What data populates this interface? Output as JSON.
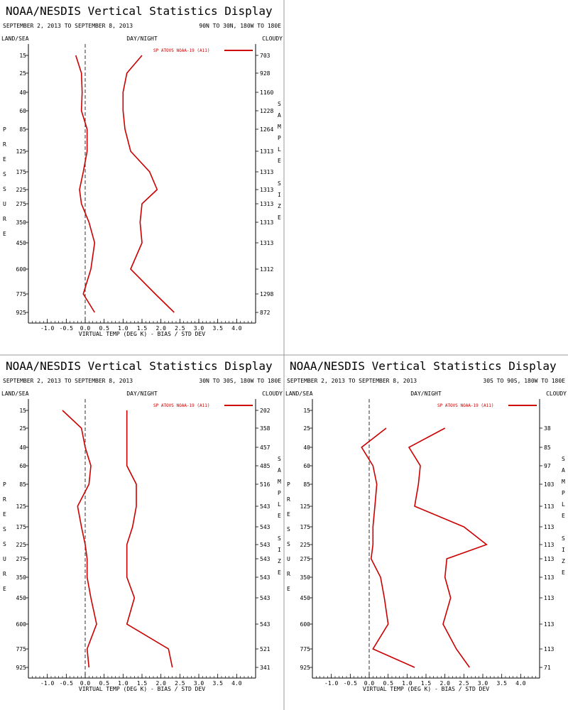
{
  "app": {
    "title": "NOAA/NESDIS Vertical Statistics Display"
  },
  "colors": {
    "series": "#cc0000",
    "zero_line": "#000000",
    "text": "#000000"
  },
  "panels": [
    {
      "title": "NOAA/NESDIS Vertical Statistics Display",
      "date_range": "SEPTEMBER 2, 2013 TO SEPTEMBER 8, 2013",
      "region": "90N TO 30N, 180W TO 180E",
      "left_label": "LAND/SEA",
      "mid_label": "DAY/NIGHT",
      "right_label": "CLOUDY",
      "y_axis_title": [
        "P",
        "R",
        "E",
        "S",
        "S",
        "U",
        "R",
        "E"
      ],
      "right_axis_title": [
        "S",
        "A",
        "M",
        "P",
        "L",
        "E",
        "",
        "S",
        "I",
        "Z",
        "E"
      ],
      "x_label": "VIRTUAL TEMP (DEG K) - BIAS / STD DEV",
      "legend": "SP ATOVS NOAA-19 (A11)",
      "sample_size": [
        "703",
        "928",
        "1160",
        "1228",
        "1264",
        "1313",
        "1313",
        "1313",
        "1313",
        "1313",
        "1313",
        "1312",
        "1298",
        "872"
      ]
    },
    {
      "title": "NOAA/NESDIS Vertical Statistics Display",
      "date_range": "SEPTEMBER 2, 2013 TO SEPTEMBER 8, 2013",
      "region": "30N TO 30S, 180W TO 180E",
      "left_label": "LAND/SEA",
      "mid_label": "DAY/NIGHT",
      "right_label": "CLOUDY",
      "y_axis_title": [
        "P",
        "R",
        "E",
        "S",
        "S",
        "U",
        "R",
        "E"
      ],
      "right_axis_title": [
        "S",
        "A",
        "M",
        "P",
        "L",
        "E",
        "",
        "S",
        "I",
        "Z",
        "E"
      ],
      "x_label": "VIRTUAL TEMP (DEG K) - BIAS / STD DEV",
      "legend": "SP ATOVS NOAA-19 (A11)",
      "sample_size": [
        "202",
        "358",
        "457",
        "485",
        "516",
        "543",
        "543",
        "543",
        "543",
        "543",
        "543",
        "543",
        "521",
        "341"
      ]
    },
    {
      "title": "NOAA/NESDIS Vertical Statistics Display",
      "date_range": "SEPTEMBER 2, 2013 TO SEPTEMBER 8, 2013",
      "region": "30S TO 90S, 180W TO 180E",
      "left_label": "LAND/SEA",
      "mid_label": "DAY/NIGHT",
      "right_label": "CLOUDY",
      "y_axis_title": [
        "P",
        "R",
        "E",
        "S",
        "S",
        "U",
        "R",
        "E"
      ],
      "right_axis_title": [
        "S",
        "A",
        "M",
        "P",
        "L",
        "E",
        "",
        "S",
        "I",
        "Z",
        "E"
      ],
      "x_label": "VIRTUAL TEMP (DEG K) - BIAS / STD DEV",
      "legend": "SP ATOVS NOAA-19 (A11)",
      "sample_size": [
        "",
        "38",
        "85",
        "97",
        "103",
        "113",
        "113",
        "113",
        "113",
        "113",
        "113",
        "113",
        "113",
        "71"
      ]
    }
  ],
  "chart_data": [
    {
      "type": "line",
      "region": "90N TO 30N, 180W TO 180E",
      "xlabel": "VIRTUAL TEMP (DEG K) - BIAS / STD DEV",
      "xlim": [
        -1.5,
        4.5
      ],
      "xticks": [
        "-1.0",
        "-0.5",
        "0.0",
        "0.5",
        "1.0",
        "1.5",
        "2.0",
        "2.5",
        "3.0",
        "3.5",
        "4.0"
      ],
      "y_pressure_levels": [
        "15",
        "25",
        "40",
        "60",
        "85",
        "125",
        "175",
        "225",
        "275",
        "350",
        "450",
        "600",
        "775",
        "925"
      ],
      "series": [
        {
          "name": "SP ATOVS NOAA-19 (A11)",
          "role": "bias",
          "values": [
            -0.25,
            -0.1,
            -0.08,
            -0.1,
            0.05,
            0.05,
            -0.05,
            -0.15,
            -0.1,
            0.1,
            0.25,
            0.15,
            -0.05,
            0.25
          ]
        },
        {
          "name": "SP ATOVS NOAA-19 (A11)",
          "role": "std_dev",
          "values": [
            1.5,
            1.1,
            1.0,
            1.0,
            1.05,
            1.2,
            1.7,
            1.9,
            1.5,
            1.45,
            1.5,
            1.2,
            1.85,
            2.35
          ]
        }
      ]
    },
    {
      "type": "line",
      "region": "30N TO 30S, 180W TO 180E",
      "xlabel": "VIRTUAL TEMP (DEG K) - BIAS / STD DEV",
      "xlim": [
        -1.5,
        4.5
      ],
      "xticks": [
        "-1.0",
        "-0.5",
        "0.0",
        "0.5",
        "1.0",
        "1.5",
        "2.0",
        "2.5",
        "3.0",
        "3.5",
        "4.0"
      ],
      "y_pressure_levels": [
        "15",
        "25",
        "40",
        "60",
        "85",
        "125",
        "175",
        "225",
        "275",
        "350",
        "450",
        "600",
        "775",
        "925"
      ],
      "series": [
        {
          "name": "SP ATOVS NOAA-19 (A11)",
          "role": "bias",
          "values": [
            -0.6,
            -0.1,
            0.0,
            0.15,
            0.1,
            -0.2,
            -0.1,
            0.0,
            0.05,
            0.05,
            0.15,
            0.3,
            0.05,
            0.1
          ]
        },
        {
          "name": "SP ATOVS NOAA-19 (A11)",
          "role": "std_dev",
          "values": [
            1.1,
            1.1,
            1.1,
            1.1,
            1.35,
            1.35,
            1.25,
            1.1,
            1.1,
            1.1,
            1.3,
            1.1,
            2.2,
            2.3
          ]
        }
      ]
    },
    {
      "type": "line",
      "region": "30S TO 90S, 180W TO 180E",
      "xlabel": "VIRTUAL TEMP (DEG K) - BIAS / STD DEV",
      "xlim": [
        -1.5,
        4.5
      ],
      "xticks": [
        "-1.0",
        "-0.5",
        "0.0",
        "0.5",
        "1.0",
        "1.5",
        "2.0",
        "2.5",
        "3.0",
        "3.5",
        "4.0"
      ],
      "y_pressure_levels": [
        "15",
        "25",
        "40",
        "60",
        "85",
        "125",
        "175",
        "225",
        "275",
        "350",
        "450",
        "600",
        "775",
        "925"
      ],
      "series": [
        {
          "name": "SP ATOVS NOAA-19 (A11)",
          "role": "bias",
          "values": [
            null,
            0.45,
            -0.2,
            0.1,
            0.2,
            0.15,
            0.1,
            0.1,
            0.05,
            0.3,
            0.4,
            0.5,
            0.1,
            1.2
          ]
        },
        {
          "name": "SP ATOVS NOAA-19 (A11)",
          "role": "std_dev",
          "values": [
            null,
            2.0,
            1.05,
            1.35,
            1.3,
            1.2,
            2.5,
            3.1,
            2.05,
            2.0,
            2.15,
            1.95,
            2.3,
            2.65
          ]
        }
      ]
    }
  ]
}
